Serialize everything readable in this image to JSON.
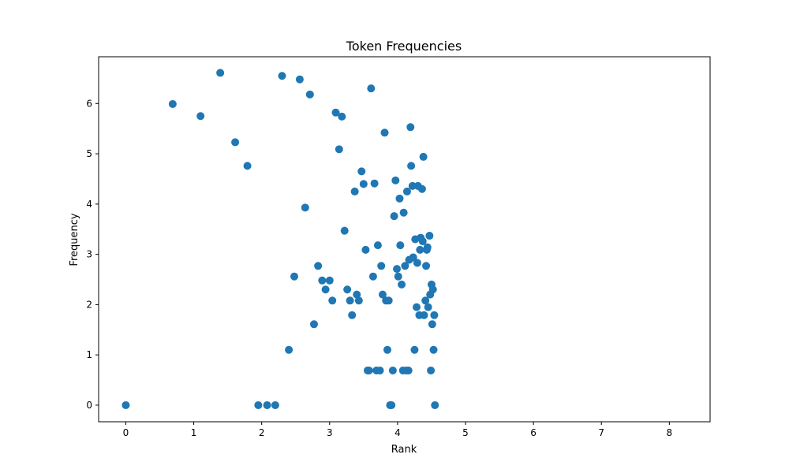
{
  "chart_data": {
    "type": "scatter",
    "title": "Token Frequencies",
    "xlabel": "Rank",
    "ylabel": "Frequency",
    "xlim": [
      -0.4,
      8.6
    ],
    "ylim": [
      -0.33,
      6.93
    ],
    "xticks": [
      0,
      1,
      2,
      3,
      4,
      5,
      6,
      7,
      8
    ],
    "yticks": [
      0,
      1,
      2,
      3,
      4,
      5,
      6
    ],
    "grid": false,
    "color": "#1f77b4",
    "series": [
      {
        "x": [
          0.0,
          0.69,
          1.1,
          1.39,
          1.61,
          1.79,
          1.95,
          2.08,
          2.2,
          2.3,
          2.4,
          2.48,
          2.56,
          2.64,
          2.71,
          2.77,
          2.83,
          2.89,
          2.94,
          3.0,
          3.04,
          3.09,
          3.14,
          3.18,
          3.22,
          3.26,
          3.3,
          3.33,
          3.37,
          3.4,
          3.43,
          3.47,
          3.5,
          3.53,
          3.56,
          3.58,
          3.61,
          3.64,
          3.66,
          3.69,
          3.71,
          3.74,
          3.76,
          3.78,
          3.81,
          3.83,
          3.85,
          3.87,
          3.89,
          3.91,
          3.93,
          3.95,
          3.97,
          3.99,
          4.01,
          4.03,
          4.04,
          4.06,
          4.08,
          4.09,
          4.11,
          4.13,
          4.14,
          4.16,
          4.17,
          4.19,
          4.2,
          4.22,
          4.23,
          4.25,
          4.26,
          4.28,
          4.29,
          4.3,
          4.32,
          4.33,
          4.34,
          4.36,
          4.37,
          4.38,
          4.39,
          4.41,
          4.42,
          4.43,
          4.44,
          4.45,
          4.47,
          4.48,
          4.49,
          4.5,
          4.51,
          4.52,
          4.53,
          4.54,
          4.55
        ],
        "y": [
          0.0,
          5.99,
          5.75,
          6.61,
          5.23,
          4.76,
          0.0,
          0.0,
          0.0,
          6.55,
          1.1,
          2.56,
          6.48,
          3.93,
          6.18,
          1.61,
          2.77,
          2.48,
          2.3,
          2.48,
          2.08,
          5.82,
          5.09,
          5.74,
          3.47,
          2.3,
          2.08,
          1.79,
          4.25,
          2.2,
          2.08,
          4.65,
          4.4,
          3.09,
          0.69,
          0.69,
          6.3,
          2.56,
          4.41,
          0.69,
          3.18,
          0.69,
          2.77,
          2.2,
          5.42,
          2.08,
          1.1,
          2.08,
          0.0,
          0.0,
          0.69,
          3.76,
          4.47,
          2.71,
          2.56,
          4.11,
          3.18,
          2.4,
          0.69,
          3.83,
          2.77,
          0.69,
          4.25,
          0.69,
          2.89,
          5.53,
          4.76,
          4.36,
          2.94,
          1.1,
          3.3,
          1.95,
          2.83,
          4.36,
          1.79,
          3.09,
          3.33,
          4.3,
          3.26,
          4.94,
          1.79,
          2.08,
          2.77,
          3.09,
          3.14,
          1.95,
          3.37,
          2.2,
          0.69,
          2.4,
          1.61,
          2.3,
          1.1,
          1.79,
          0.0
        ]
      }
    ]
  }
}
